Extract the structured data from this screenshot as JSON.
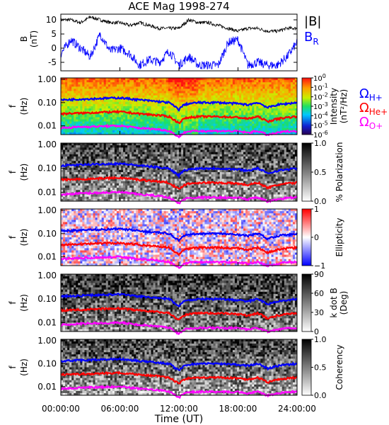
{
  "title": "ACE Mag 1998-274",
  "time_axis": {
    "label": "Time (UT)",
    "ticks": [
      "00:00:00",
      "06:00:00",
      "12:00:00",
      "18:00:00",
      "24:00:00"
    ],
    "range_hours": [
      0,
      24
    ]
  },
  "colors": {
    "B_total": "#000000",
    "B_R": "#0000ff",
    "H_plus": "#0000ff",
    "He_plus": "#ff0000",
    "O_plus": "#ff00ff"
  },
  "chart_data": [
    {
      "type": "line",
      "panel": "magnetic-field",
      "ylabel": "B (nT)",
      "ylabel_lines": [
        "B",
        "(nT)"
      ],
      "ylim": [
        -8,
        12
      ],
      "yticks": [
        "10",
        "5",
        "0",
        "-5"
      ],
      "yticks_values": [
        10,
        5,
        0,
        -5
      ],
      "x": [
        0,
        1,
        2,
        3,
        4,
        5,
        6,
        7,
        8,
        9,
        10,
        11,
        12,
        13,
        14,
        15,
        16,
        17,
        18,
        19,
        20,
        21,
        22,
        23,
        24
      ],
      "series": [
        {
          "name": "|B|",
          "values": [
            10,
            10,
            9,
            11,
            10,
            9,
            9,
            8,
            9,
            8,
            7,
            7,
            7,
            10,
            9,
            9,
            8,
            7,
            6,
            7,
            7,
            6,
            6,
            7,
            7
          ]
        },
        {
          "name": "B_R",
          "values": [
            -2,
            3,
            0,
            -3,
            5,
            -1,
            0,
            -2,
            -6,
            -4,
            -5,
            -1,
            -6,
            -3,
            -6,
            -6,
            -6,
            2,
            3,
            -6,
            -5,
            -6,
            -6,
            -3,
            2
          ]
        }
      ],
      "legend": [
        {
          "label": "|B|",
          "base": "|B|",
          "sub": ""
        },
        {
          "label": "B_R",
          "base": "B",
          "sub": "R"
        }
      ]
    },
    {
      "type": "heatmap",
      "panel": "intensity",
      "ylabel_lines": [
        "f",
        "(Hz)"
      ],
      "yticks": [
        "1.00",
        "0.10",
        "0.01"
      ],
      "yticks_values": [
        1,
        0.1,
        0.01
      ],
      "ylim": [
        0.004,
        1.1
      ],
      "colorbar_label": "Intensity (nT²/Hz)",
      "colorbar_label_lines": [
        "Intensity",
        "(nT²/Hz)"
      ],
      "colorbar_ticks": [
        {
          "base": "10",
          "exp": "0"
        },
        {
          "base": "10",
          "exp": "-1"
        },
        {
          "base": "10",
          "exp": "-2"
        },
        {
          "base": "10",
          "exp": "-3"
        },
        {
          "base": "10",
          "exp": "-4"
        },
        {
          "base": "10",
          "exp": "-5"
        },
        {
          "base": "10",
          "exp": "-6"
        }
      ],
      "colorbar_values": [
        0,
        -1,
        -2,
        -3,
        -4,
        -5,
        -6
      ],
      "legend": [
        {
          "label": "Ω_H+",
          "base": "Ω",
          "sub": "H+"
        },
        {
          "label": "Ω_He+",
          "base": "Ω",
          "sub": "He+"
        },
        {
          "label": "Ω_O+",
          "base": "Ω",
          "sub": "O+"
        }
      ]
    },
    {
      "type": "heatmap",
      "panel": "polarization",
      "ylabel_lines": [
        "f",
        "(Hz)"
      ],
      "yticks": [
        "1.00",
        "0.10",
        "0.01"
      ],
      "yticks_values": [
        1,
        0.1,
        0.01
      ],
      "colorbar_label": "% Polarization",
      "colorbar_ticks": [
        "1.0",
        "0.5",
        "0.0"
      ],
      "colorbar_values": [
        1.0,
        0.5,
        0.0
      ]
    },
    {
      "type": "heatmap",
      "panel": "ellipticity",
      "ylabel_lines": [
        "f",
        "(Hz)"
      ],
      "yticks": [
        "1.00",
        "0.10",
        "0.01"
      ],
      "yticks_values": [
        1,
        0.1,
        0.01
      ],
      "colorbar_label": "Ellipticity",
      "colorbar_ticks": [
        "1",
        "0",
        "−1"
      ],
      "colorbar_values": [
        1,
        0,
        -1
      ]
    },
    {
      "type": "heatmap",
      "panel": "k-dot-b",
      "ylabel_lines": [
        "f",
        "(Hz)"
      ],
      "yticks": [
        "1.00",
        "0.10",
        "0.01"
      ],
      "yticks_values": [
        1,
        0.1,
        0.01
      ],
      "colorbar_label": "k dot B (Deg)",
      "colorbar_label_lines": [
        "k dot B",
        "(Deg)"
      ],
      "colorbar_ticks": [
        "90",
        "60",
        "30",
        "0"
      ],
      "colorbar_values": [
        90,
        60,
        30,
        0
      ]
    },
    {
      "type": "heatmap",
      "panel": "coherency",
      "ylabel_lines": [
        "f",
        "(Hz)"
      ],
      "yticks": [
        "1.00",
        "0.10",
        "0.01"
      ],
      "yticks_values": [
        1,
        0.1,
        0.01
      ],
      "colorbar_label": "Coherency",
      "colorbar_ticks": [
        "1.0",
        "0.5",
        "0.0"
      ],
      "colorbar_values": [
        1.0,
        0.5,
        0.0
      ]
    }
  ],
  "gyrofrequency_lines": {
    "x": [
      0,
      2,
      4,
      6,
      8,
      10,
      11,
      11.5,
      12,
      12.5,
      13,
      14,
      16,
      18,
      19,
      20,
      21,
      22,
      23,
      24
    ],
    "H_plus_hz": [
      0.13,
      0.14,
      0.15,
      0.16,
      0.13,
      0.11,
      0.1,
      0.07,
      0.05,
      0.08,
      0.09,
      0.1,
      0.1,
      0.09,
      0.08,
      0.1,
      0.06,
      0.08,
      0.09,
      0.1
    ],
    "He_plus_hz": [
      0.033,
      0.035,
      0.038,
      0.04,
      0.033,
      0.028,
      0.025,
      0.018,
      0.013,
      0.02,
      0.023,
      0.025,
      0.025,
      0.023,
      0.02,
      0.025,
      0.015,
      0.02,
      0.023,
      0.025
    ],
    "O_plus_hz": [
      0.008,
      0.009,
      0.0095,
      0.01,
      0.008,
      0.007,
      0.006,
      0.0045,
      0.0033,
      0.005,
      0.0058,
      0.006,
      0.006,
      0.0058,
      0.005,
      0.006,
      0.004,
      0.005,
      0.0058,
      0.006
    ]
  }
}
